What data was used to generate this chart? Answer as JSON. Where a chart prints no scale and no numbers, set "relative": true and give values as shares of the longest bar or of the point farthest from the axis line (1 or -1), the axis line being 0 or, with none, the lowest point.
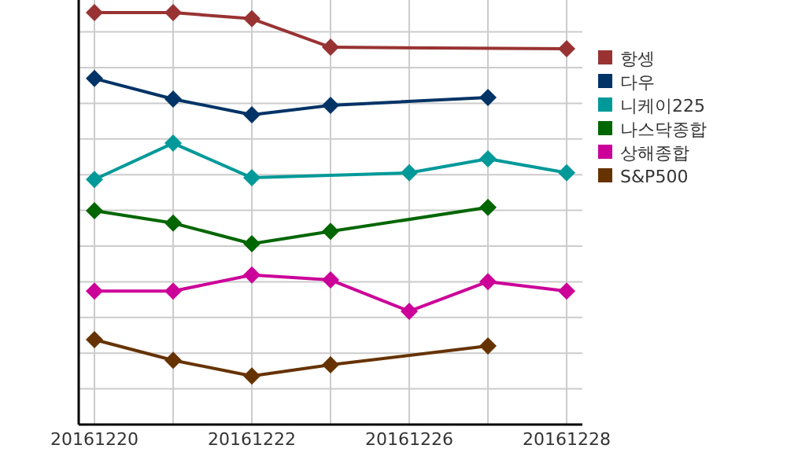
{
  "chart_data": {
    "type": "line",
    "relative": true,
    "categories": [
      "20161220",
      null,
      "20161222",
      null,
      "20161226",
      null,
      "20161228"
    ],
    "grid": true,
    "legend": "right",
    "marker": "diamond",
    "line_style": "solid",
    "series": [
      {
        "name": "항셍",
        "color": "#993333",
        "values": [
          1,
          1,
          0.985,
          0.916,
          null,
          null,
          0.912
        ]
      },
      {
        "name": "다우",
        "color": "#003366",
        "values": [
          0.84,
          0.79,
          0.752,
          0.775,
          null,
          0.794,
          null
        ]
      },
      {
        "name": "니케이225",
        "color": "#009999",
        "values": [
          0.595,
          0.683,
          0.599,
          null,
          0.611,
          0.645,
          0.611
        ]
      },
      {
        "name": "나스닥종합",
        "color": "#006600",
        "values": [
          0.519,
          0.489,
          0.439,
          0.469,
          null,
          0.527,
          null
        ]
      },
      {
        "name": "상해종합",
        "color": "#cc0099",
        "values": [
          0.324,
          0.324,
          0.363,
          0.351,
          0.275,
          0.347,
          0.324
        ]
      },
      {
        "name": "S&P500",
        "color": "#663300",
        "values": [
          0.206,
          0.156,
          0.118,
          0.145,
          null,
          0.191,
          null
        ]
      }
    ]
  }
}
